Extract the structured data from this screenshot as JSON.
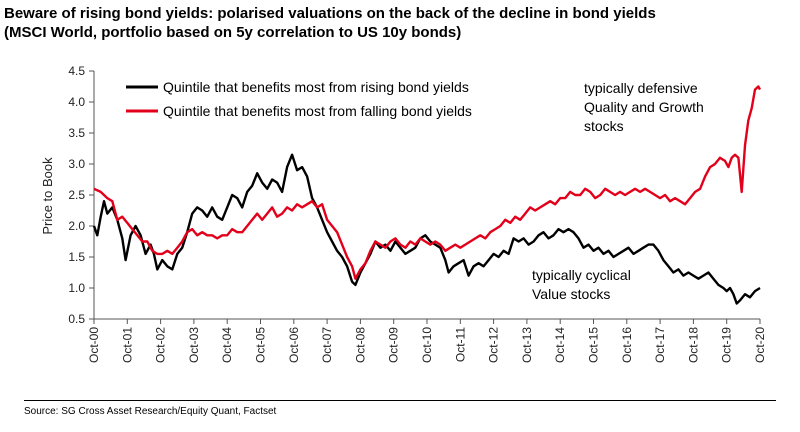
{
  "title_line1": "Beware of rising bond yields: polarised valuations on the back of the decline in bond yields",
  "title_line2": "(MSCI World, portfolio based on 5y correlation to US 10y bonds)",
  "source": "Source: SG Cross Asset Research/Equity Quant, Factset",
  "annotations": {
    "defensive": [
      "typically defensive",
      "Quality and Growth",
      "stocks"
    ],
    "cyclical": [
      "typically cyclical",
      "Value stocks"
    ]
  },
  "colors": {
    "rising": "#000000",
    "falling": "#e3001b"
  },
  "chart_data": {
    "type": "line",
    "xlabel": "",
    "ylabel": "Price to Book",
    "ylim": [
      0.5,
      4.5
    ],
    "yticks": [
      "0.5",
      "1.0",
      "1.5",
      "2.0",
      "2.5",
      "3.0",
      "3.5",
      "4.0",
      "4.5"
    ],
    "x_range": [
      2000.75,
      2020.75
    ],
    "categories": [
      "Oct-00",
      "Oct-01",
      "Oct-02",
      "Oct-03",
      "Oct-04",
      "Oct-05",
      "Oct-06",
      "Oct-07",
      "Oct-08",
      "Oct-09",
      "Oct-10",
      "Oct-11",
      "Oct-12",
      "Oct-13",
      "Oct-14",
      "Oct-15",
      "Oct-16",
      "Oct-17",
      "Oct-18",
      "Oct-19",
      "Oct-20"
    ],
    "legend_position": "top-left",
    "grid": false,
    "series": [
      {
        "name": "Quintile that benefits most from rising bond yields",
        "color": "#000000",
        "points": [
          [
            2000.75,
            2.0
          ],
          [
            2000.85,
            1.85
          ],
          [
            2000.95,
            2.15
          ],
          [
            2001.05,
            2.4
          ],
          [
            2001.15,
            2.2
          ],
          [
            2001.3,
            2.3
          ],
          [
            2001.45,
            2.1
          ],
          [
            2001.6,
            1.8
          ],
          [
            2001.7,
            1.45
          ],
          [
            2001.85,
            1.85
          ],
          [
            2002.0,
            2.0
          ],
          [
            2002.15,
            1.85
          ],
          [
            2002.3,
            1.55
          ],
          [
            2002.45,
            1.7
          ],
          [
            2002.55,
            1.55
          ],
          [
            2002.65,
            1.3
          ],
          [
            2002.8,
            1.45
          ],
          [
            2002.95,
            1.35
          ],
          [
            2003.1,
            1.3
          ],
          [
            2003.25,
            1.55
          ],
          [
            2003.4,
            1.65
          ],
          [
            2003.55,
            1.9
          ],
          [
            2003.7,
            2.2
          ],
          [
            2003.85,
            2.3
          ],
          [
            2004.0,
            2.25
          ],
          [
            2004.15,
            2.15
          ],
          [
            2004.3,
            2.3
          ],
          [
            2004.45,
            2.15
          ],
          [
            2004.6,
            2.1
          ],
          [
            2004.75,
            2.3
          ],
          [
            2004.9,
            2.5
          ],
          [
            2005.05,
            2.45
          ],
          [
            2005.2,
            2.3
          ],
          [
            2005.35,
            2.55
          ],
          [
            2005.5,
            2.65
          ],
          [
            2005.65,
            2.85
          ],
          [
            2005.8,
            2.7
          ],
          [
            2005.95,
            2.6
          ],
          [
            2006.1,
            2.75
          ],
          [
            2006.25,
            2.7
          ],
          [
            2006.4,
            2.55
          ],
          [
            2006.55,
            2.95
          ],
          [
            2006.7,
            3.15
          ],
          [
            2006.85,
            2.9
          ],
          [
            2007.0,
            2.95
          ],
          [
            2007.15,
            2.8
          ],
          [
            2007.3,
            2.45
          ],
          [
            2007.45,
            2.3
          ],
          [
            2007.6,
            2.1
          ],
          [
            2007.75,
            1.9
          ],
          [
            2007.9,
            1.75
          ],
          [
            2008.05,
            1.6
          ],
          [
            2008.2,
            1.5
          ],
          [
            2008.35,
            1.35
          ],
          [
            2008.5,
            1.1
          ],
          [
            2008.6,
            1.05
          ],
          [
            2008.75,
            1.25
          ],
          [
            2008.9,
            1.4
          ],
          [
            2009.05,
            1.55
          ],
          [
            2009.2,
            1.75
          ],
          [
            2009.35,
            1.65
          ],
          [
            2009.5,
            1.7
          ],
          [
            2009.65,
            1.6
          ],
          [
            2009.8,
            1.75
          ],
          [
            2009.95,
            1.65
          ],
          [
            2010.1,
            1.55
          ],
          [
            2010.25,
            1.6
          ],
          [
            2010.4,
            1.65
          ],
          [
            2010.55,
            1.8
          ],
          [
            2010.7,
            1.85
          ],
          [
            2010.85,
            1.75
          ],
          [
            2011.0,
            1.7
          ],
          [
            2011.15,
            1.65
          ],
          [
            2011.3,
            1.45
          ],
          [
            2011.4,
            1.25
          ],
          [
            2011.55,
            1.35
          ],
          [
            2011.7,
            1.4
          ],
          [
            2011.85,
            1.45
          ],
          [
            2012.0,
            1.2
          ],
          [
            2012.15,
            1.35
          ],
          [
            2012.3,
            1.4
          ],
          [
            2012.45,
            1.35
          ],
          [
            2012.6,
            1.45
          ],
          [
            2012.75,
            1.55
          ],
          [
            2012.9,
            1.5
          ],
          [
            2013.05,
            1.6
          ],
          [
            2013.2,
            1.55
          ],
          [
            2013.35,
            1.8
          ],
          [
            2013.5,
            1.75
          ],
          [
            2013.65,
            1.8
          ],
          [
            2013.8,
            1.7
          ],
          [
            2013.95,
            1.75
          ],
          [
            2014.1,
            1.85
          ],
          [
            2014.25,
            1.9
          ],
          [
            2014.4,
            1.8
          ],
          [
            2014.55,
            1.85
          ],
          [
            2014.7,
            1.95
          ],
          [
            2014.85,
            1.9
          ],
          [
            2015.0,
            1.95
          ],
          [
            2015.15,
            1.9
          ],
          [
            2015.3,
            1.8
          ],
          [
            2015.45,
            1.65
          ],
          [
            2015.6,
            1.7
          ],
          [
            2015.75,
            1.6
          ],
          [
            2015.9,
            1.65
          ],
          [
            2016.05,
            1.55
          ],
          [
            2016.2,
            1.6
          ],
          [
            2016.35,
            1.5
          ],
          [
            2016.5,
            1.55
          ],
          [
            2016.65,
            1.6
          ],
          [
            2016.8,
            1.65
          ],
          [
            2016.95,
            1.55
          ],
          [
            2017.1,
            1.6
          ],
          [
            2017.25,
            1.65
          ],
          [
            2017.4,
            1.7
          ],
          [
            2017.55,
            1.7
          ],
          [
            2017.7,
            1.6
          ],
          [
            2017.85,
            1.45
          ],
          [
            2018.0,
            1.35
          ],
          [
            2018.15,
            1.25
          ],
          [
            2018.3,
            1.3
          ],
          [
            2018.45,
            1.2
          ],
          [
            2018.6,
            1.25
          ],
          [
            2018.75,
            1.2
          ],
          [
            2018.9,
            1.15
          ],
          [
            2019.05,
            1.2
          ],
          [
            2019.2,
            1.25
          ],
          [
            2019.35,
            1.15
          ],
          [
            2019.5,
            1.05
          ],
          [
            2019.65,
            1.0
          ],
          [
            2019.75,
            0.95
          ],
          [
            2019.85,
            1.0
          ],
          [
            2019.95,
            0.9
          ],
          [
            2020.05,
            0.75
          ],
          [
            2020.15,
            0.8
          ],
          [
            2020.3,
            0.9
          ],
          [
            2020.45,
            0.85
          ],
          [
            2020.6,
            0.95
          ],
          [
            2020.75,
            1.0
          ]
        ]
      },
      {
        "name": "Quintile that benefits most from falling bond  yields",
        "color": "#e3001b",
        "points": [
          [
            2000.75,
            2.6
          ],
          [
            2000.95,
            2.55
          ],
          [
            2001.15,
            2.45
          ],
          [
            2001.3,
            2.4
          ],
          [
            2001.45,
            2.1
          ],
          [
            2001.6,
            2.15
          ],
          [
            2001.75,
            2.05
          ],
          [
            2001.9,
            1.95
          ],
          [
            2002.05,
            1.85
          ],
          [
            2002.2,
            1.75
          ],
          [
            2002.35,
            1.75
          ],
          [
            2002.5,
            1.6
          ],
          [
            2002.65,
            1.55
          ],
          [
            2002.8,
            1.55
          ],
          [
            2002.95,
            1.6
          ],
          [
            2003.1,
            1.55
          ],
          [
            2003.25,
            1.65
          ],
          [
            2003.4,
            1.75
          ],
          [
            2003.55,
            1.9
          ],
          [
            2003.7,
            1.95
          ],
          [
            2003.85,
            1.85
          ],
          [
            2004.0,
            1.9
          ],
          [
            2004.15,
            1.85
          ],
          [
            2004.3,
            1.85
          ],
          [
            2004.45,
            1.8
          ],
          [
            2004.6,
            1.85
          ],
          [
            2004.75,
            1.85
          ],
          [
            2004.9,
            1.95
          ],
          [
            2005.05,
            1.9
          ],
          [
            2005.2,
            1.9
          ],
          [
            2005.35,
            2.0
          ],
          [
            2005.5,
            2.1
          ],
          [
            2005.65,
            2.2
          ],
          [
            2005.8,
            2.1
          ],
          [
            2005.95,
            2.2
          ],
          [
            2006.1,
            2.3
          ],
          [
            2006.25,
            2.15
          ],
          [
            2006.4,
            2.2
          ],
          [
            2006.55,
            2.3
          ],
          [
            2006.7,
            2.25
          ],
          [
            2006.85,
            2.35
          ],
          [
            2007.0,
            2.3
          ],
          [
            2007.15,
            2.35
          ],
          [
            2007.3,
            2.4
          ],
          [
            2007.45,
            2.3
          ],
          [
            2007.6,
            2.35
          ],
          [
            2007.75,
            2.1
          ],
          [
            2007.9,
            2.0
          ],
          [
            2008.05,
            1.9
          ],
          [
            2008.2,
            1.7
          ],
          [
            2008.35,
            1.5
          ],
          [
            2008.5,
            1.35
          ],
          [
            2008.6,
            1.15
          ],
          [
            2008.75,
            1.3
          ],
          [
            2008.9,
            1.4
          ],
          [
            2009.05,
            1.6
          ],
          [
            2009.2,
            1.75
          ],
          [
            2009.35,
            1.7
          ],
          [
            2009.5,
            1.65
          ],
          [
            2009.65,
            1.75
          ],
          [
            2009.8,
            1.8
          ],
          [
            2009.95,
            1.7
          ],
          [
            2010.1,
            1.65
          ],
          [
            2010.25,
            1.75
          ],
          [
            2010.4,
            1.7
          ],
          [
            2010.55,
            1.8
          ],
          [
            2010.7,
            1.75
          ],
          [
            2010.85,
            1.7
          ],
          [
            2011.0,
            1.75
          ],
          [
            2011.15,
            1.7
          ],
          [
            2011.3,
            1.6
          ],
          [
            2011.45,
            1.65
          ],
          [
            2011.6,
            1.7
          ],
          [
            2011.75,
            1.65
          ],
          [
            2011.9,
            1.7
          ],
          [
            2012.05,
            1.75
          ],
          [
            2012.2,
            1.8
          ],
          [
            2012.35,
            1.85
          ],
          [
            2012.5,
            1.8
          ],
          [
            2012.65,
            1.9
          ],
          [
            2012.8,
            1.95
          ],
          [
            2012.95,
            2.0
          ],
          [
            2013.1,
            2.1
          ],
          [
            2013.25,
            2.05
          ],
          [
            2013.4,
            2.15
          ],
          [
            2013.55,
            2.1
          ],
          [
            2013.7,
            2.2
          ],
          [
            2013.85,
            2.3
          ],
          [
            2014.0,
            2.25
          ],
          [
            2014.15,
            2.3
          ],
          [
            2014.3,
            2.35
          ],
          [
            2014.45,
            2.4
          ],
          [
            2014.6,
            2.35
          ],
          [
            2014.75,
            2.45
          ],
          [
            2014.9,
            2.45
          ],
          [
            2015.05,
            2.55
          ],
          [
            2015.2,
            2.5
          ],
          [
            2015.35,
            2.5
          ],
          [
            2015.5,
            2.6
          ],
          [
            2015.65,
            2.55
          ],
          [
            2015.8,
            2.45
          ],
          [
            2015.95,
            2.5
          ],
          [
            2016.1,
            2.6
          ],
          [
            2016.25,
            2.55
          ],
          [
            2016.4,
            2.5
          ],
          [
            2016.55,
            2.55
          ],
          [
            2016.7,
            2.5
          ],
          [
            2016.85,
            2.55
          ],
          [
            2017.0,
            2.6
          ],
          [
            2017.15,
            2.55
          ],
          [
            2017.3,
            2.6
          ],
          [
            2017.45,
            2.55
          ],
          [
            2017.6,
            2.5
          ],
          [
            2017.75,
            2.45
          ],
          [
            2017.9,
            2.5
          ],
          [
            2018.05,
            2.4
          ],
          [
            2018.2,
            2.45
          ],
          [
            2018.35,
            2.4
          ],
          [
            2018.5,
            2.35
          ],
          [
            2018.65,
            2.45
          ],
          [
            2018.8,
            2.55
          ],
          [
            2018.95,
            2.6
          ],
          [
            2019.1,
            2.8
          ],
          [
            2019.25,
            2.95
          ],
          [
            2019.4,
            3.0
          ],
          [
            2019.55,
            3.1
          ],
          [
            2019.7,
            3.05
          ],
          [
            2019.8,
            2.95
          ],
          [
            2019.9,
            3.1
          ],
          [
            2020.0,
            3.15
          ],
          [
            2020.1,
            3.1
          ],
          [
            2020.2,
            2.55
          ],
          [
            2020.3,
            3.3
          ],
          [
            2020.4,
            3.7
          ],
          [
            2020.5,
            3.9
          ],
          [
            2020.6,
            4.2
          ],
          [
            2020.7,
            4.25
          ],
          [
            2020.75,
            4.2
          ]
        ]
      }
    ]
  }
}
